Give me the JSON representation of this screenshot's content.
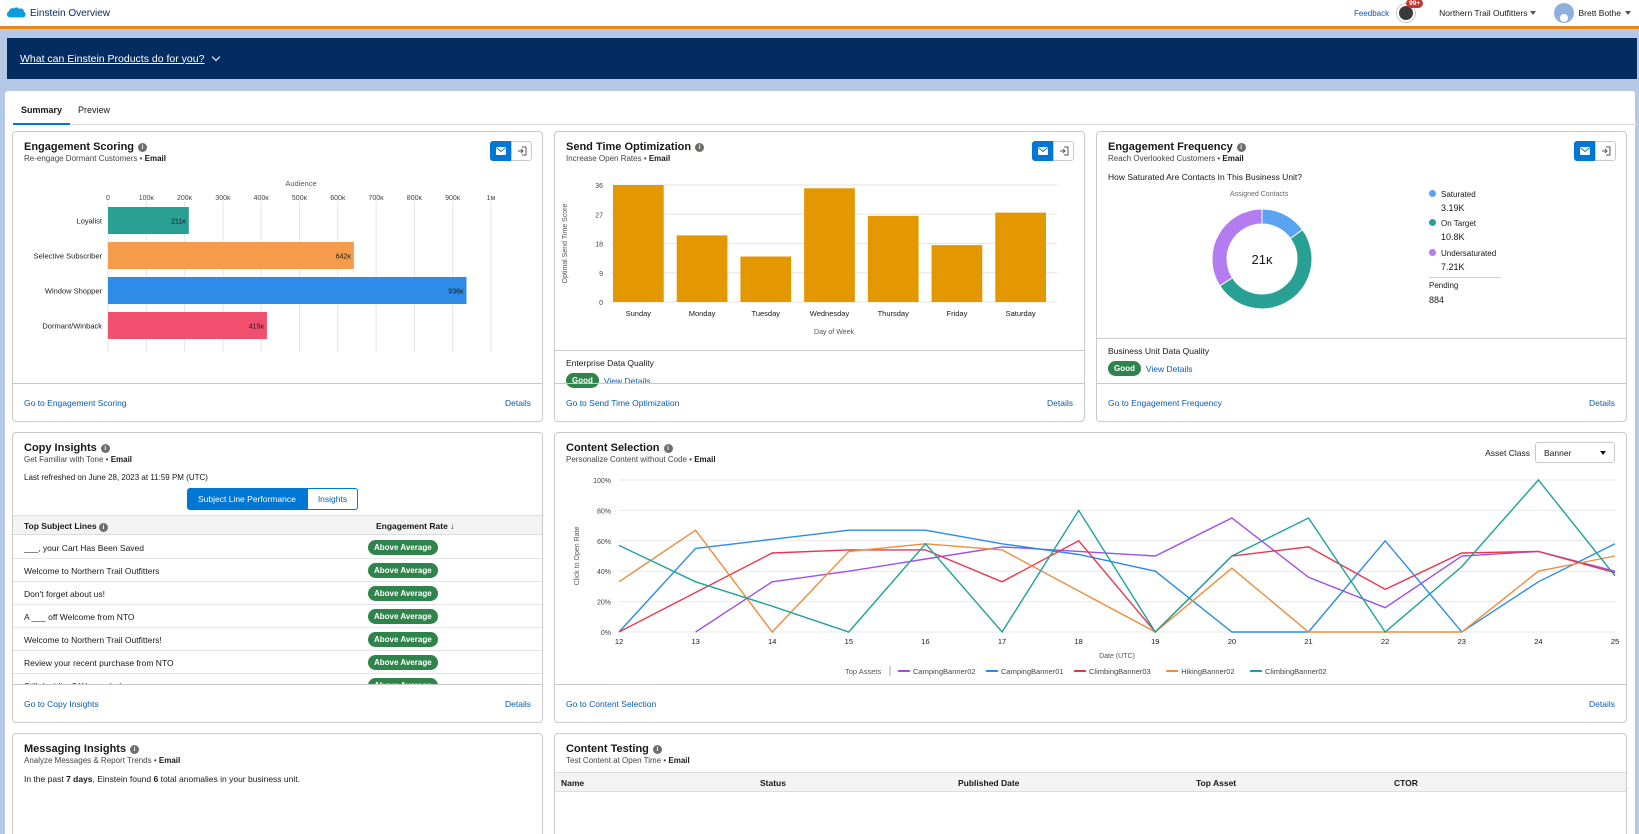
{
  "topbar": {
    "title": "Einstein Overview",
    "feedback": "Feedback",
    "notif_count": "99+",
    "org": "Northern Trail Outfitters",
    "user": "Brett Bothe"
  },
  "banner": {
    "text": "What can Einstein Products do for you?"
  },
  "tabs": [
    {
      "label": "Summary",
      "active": true
    },
    {
      "label": "Preview",
      "active": false
    }
  ],
  "colors": {
    "accent": "#0176d3",
    "navy": "#032d60",
    "good": "#2e844a",
    "orange_bar": "#e39800"
  },
  "engagement_scoring": {
    "title": "Engagement Scoring",
    "sub": "Re-engage Dormant Customers • ",
    "channel": "Email",
    "go": "Go to Engagement Scoring",
    "details": "Details",
    "chart_data": {
      "type": "bar",
      "orientation": "horizontal",
      "title": "Audience",
      "categories": [
        "Loyalist",
        "Selective Subscriber",
        "Window Shopper",
        "Dormant/Winback"
      ],
      "values": [
        211000,
        642000,
        936000,
        415000
      ],
      "data_labels": [
        "211ĸ",
        "642ĸ",
        "936ĸ",
        "415ĸ"
      ],
      "colors": [
        "#28a094",
        "#f59b4c",
        "#2c8ce8",
        "#f0506e"
      ],
      "xlim": [
        0,
        1000000
      ],
      "ticks": [
        "0",
        "100ĸ",
        "200ĸ",
        "300ĸ",
        "400ĸ",
        "500ĸ",
        "600ĸ",
        "700ĸ",
        "800ĸ",
        "900ĸ",
        "1ᴍ"
      ]
    }
  },
  "send_time": {
    "title": "Send Time Optimization",
    "sub": "Increase Open Rates • ",
    "channel": "Email",
    "dq_label": "Enterprise Data Quality",
    "dq_badge": "Good",
    "dq_link": "View Details",
    "go": "Go to Send Time Optimization",
    "details": "Details",
    "chart_data": {
      "type": "bar",
      "categories": [
        "Sunday",
        "Monday",
        "Tuesday",
        "Wednesday",
        "Thursday",
        "Friday",
        "Saturday"
      ],
      "values": [
        36,
        20.5,
        14,
        35,
        26.5,
        17.5,
        27.5
      ],
      "ylim": [
        0,
        36
      ],
      "yticks": [
        "0",
        "9",
        "18",
        "27",
        "36"
      ],
      "xlabel": "Day of Week",
      "ylabel": "Optimal Send Time Score"
    }
  },
  "engagement_frequency": {
    "title": "Engagement Frequency",
    "sub": "Reach Overlooked Customers • ",
    "channel": "Email",
    "question": "How Saturated Are Contacts In This Business Unit?",
    "chart_data": {
      "type": "pie",
      "donut": true,
      "title": "Assigned Contacts",
      "center": "21ĸ",
      "slices": [
        {
          "name": "Saturated",
          "value": 3190,
          "label": "3.19K",
          "color": "#5aa3f0"
        },
        {
          "name": "On Target",
          "value": 10800,
          "label": "10.8K",
          "color": "#28a094"
        },
        {
          "name": "Undersaturated",
          "value": 7210,
          "label": "7.21K",
          "color": "#b37cf0"
        }
      ]
    },
    "pending_label": "Pending",
    "pending_value": "884",
    "dq_label": "Business Unit Data Quality",
    "dq_badge": "Good",
    "dq_link": "View Details",
    "go": "Go to Engagement Frequency",
    "details": "Details"
  },
  "copy_insights": {
    "title": "Copy Insights",
    "sub": "Get Familiar with Tone • ",
    "channel": "Email",
    "refreshed": "Last refreshed on June 28, 2023 at 11:59 PM (UTC)",
    "toggle": [
      "Subject Line Performance",
      "Insights"
    ],
    "col1": "Top Subject Lines",
    "col2": "Engagement Rate ↓",
    "rows": [
      {
        "line": "___, your Cart Has Been Saved",
        "rate": "Above Average"
      },
      {
        "line": "Welcome to Northern Trail Outfitters",
        "rate": "Above Average"
      },
      {
        "line": "Don't forget about us!",
        "rate": "Above Average"
      },
      {
        "line": "A ___ off Welcome from NTO",
        "rate": "Above Average"
      },
      {
        "line": "Welcome to Northern Trail Outfitters!",
        "rate": "Above Average"
      },
      {
        "line": "Review your recent purchase from NTO",
        "rate": "Above Average"
      },
      {
        "line": "Still deciding? We can help.",
        "rate": "Above Average"
      }
    ],
    "go": "Go to Copy Insights",
    "details": "Details"
  },
  "content_selection": {
    "title": "Content Selection",
    "sub": "Personalize Content without Code • ",
    "channel": "Email",
    "asset_label": "Asset Class",
    "asset_value": "Banner",
    "go": "Go to Content Selection",
    "details": "Details",
    "chart_data": {
      "type": "line",
      "x": [
        12,
        13,
        14,
        15,
        16,
        17,
        18,
        19,
        20,
        21,
        22,
        23,
        24,
        25
      ],
      "xlabel": "Date (UTC)",
      "ylabel": "Click to Open Rate",
      "ylim": [
        0,
        100
      ],
      "yticks": [
        "0%",
        "20%",
        "40%",
        "60%",
        "80%",
        "100%"
      ],
      "legend_title": "Top Assets",
      "series": [
        {
          "name": "CampingBanner02",
          "color": "#a050e6",
          "values": [
            null,
            0,
            33,
            40,
            48,
            56,
            53,
            50,
            75,
            36,
            16,
            50,
            53,
            40
          ]
        },
        {
          "name": "CampingBanner01",
          "color": "#2c8ce8",
          "values": [
            0,
            55,
            61,
            67,
            67,
            58,
            51,
            40,
            0,
            0,
            60,
            0,
            33,
            58
          ]
        },
        {
          "name": "ClimbingBanner03",
          "color": "#e8384f",
          "values": [
            0,
            26,
            52,
            54,
            54,
            33,
            60,
            0,
            50,
            56,
            28,
            52,
            53,
            39
          ]
        },
        {
          "name": "HikingBanner02",
          "color": "#f08c3c",
          "values": [
            33,
            67,
            0,
            53,
            58,
            54,
            27,
            0,
            42,
            0,
            0,
            0,
            40,
            50
          ]
        },
        {
          "name": "ClimbingBanner02",
          "color": "#1aa39c",
          "values": [
            57,
            33,
            17,
            0,
            58,
            0,
            80,
            0,
            50,
            75,
            0,
            43,
            100,
            37
          ]
        }
      ]
    }
  },
  "messaging": {
    "title": "Messaging Insights",
    "sub": "Analyze Messages & Report Trends • ",
    "channel": "Email",
    "text_a": "In the past ",
    "days": "7 days",
    "text_b": ", Einstein found ",
    "count": "6",
    "text_c": " total anomalies in your business unit."
  },
  "content_testing": {
    "title": "Content Testing",
    "sub": "Test Content at Open Time • ",
    "channel": "Email",
    "columns": [
      "Name",
      "Status",
      "Published Date",
      "Top Asset",
      "CTOR"
    ]
  }
}
